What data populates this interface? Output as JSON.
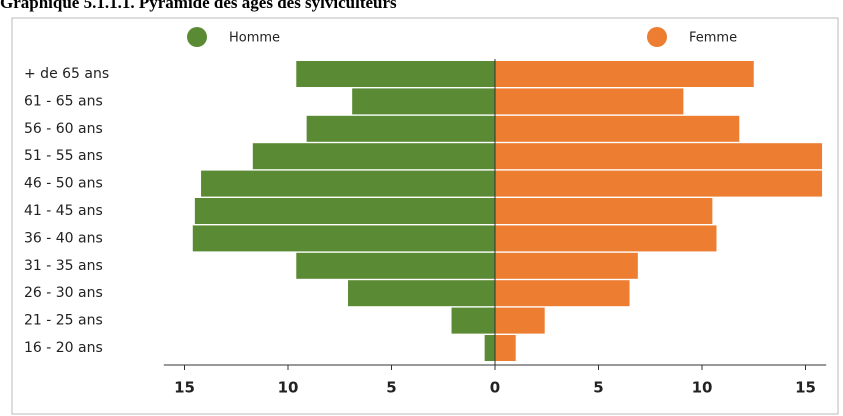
{
  "chart_data": {
    "type": "pyramid",
    "title": "Graphique 5.1.1.1. Pyramide des âges des sylviculteurs",
    "categories": [
      "+ de 65 ans",
      "61 - 65 ans",
      "56 - 60 ans",
      "51 - 55 ans",
      "46 - 50 ans",
      "41 - 45 ans",
      "36 - 40 ans",
      "31 - 35 ans",
      "26 - 30 ans",
      "21 - 25 ans",
      "16 - 20 ans"
    ],
    "series": [
      {
        "name": "Homme",
        "color": "#5b8a34",
        "side": "left",
        "values": [
          9.6,
          6.9,
          9.1,
          11.7,
          14.2,
          14.5,
          14.6,
          9.6,
          7.1,
          2.1,
          0.5
        ]
      },
      {
        "name": "Femme",
        "color": "#ed7d31",
        "side": "right",
        "values": [
          12.5,
          9.1,
          11.8,
          15.8,
          15.8,
          10.5,
          10.7,
          6.9,
          6.5,
          2.4,
          1.0
        ]
      }
    ],
    "xlim": [
      -16,
      16
    ],
    "xticks": [
      {
        "value": -15,
        "label": "15"
      },
      {
        "value": -10,
        "label": "10"
      },
      {
        "value": -5,
        "label": "5"
      },
      0,
      5,
      10,
      15
    ]
  }
}
